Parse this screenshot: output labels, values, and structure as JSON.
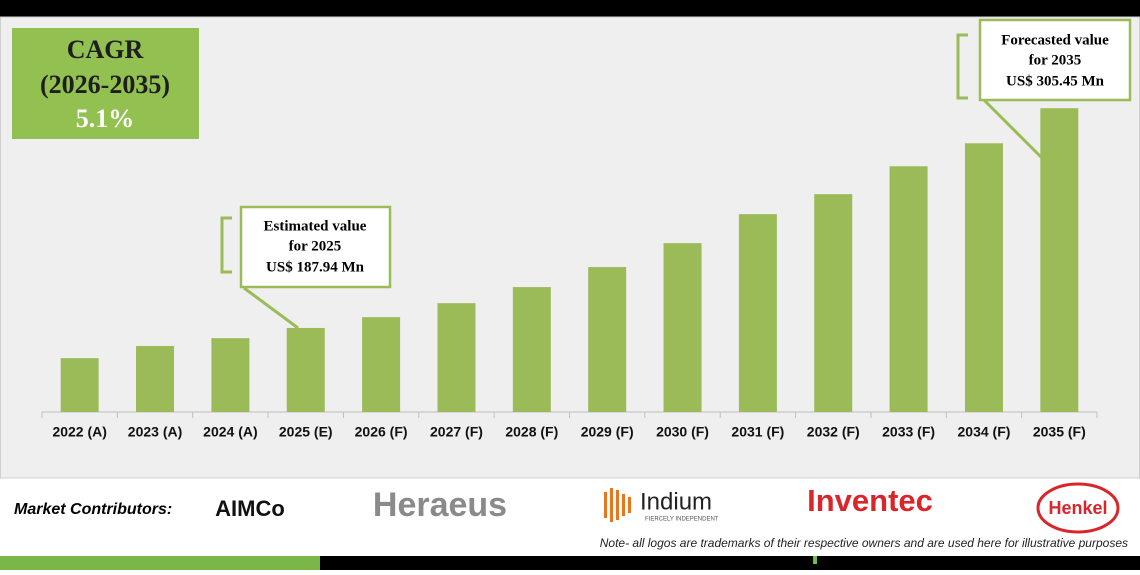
{
  "chart_data": {
    "type": "bar",
    "categories": [
      "2022 (A)",
      "2023 (A)",
      "2024 (A)",
      "2025 (E)",
      "2026 (F)",
      "2027 (F)",
      "2028 (F)",
      "2029 (F)",
      "2030 (F)",
      "2031 (F)",
      "2032 (F)",
      "2033 (F)",
      "2034 (F)",
      "2035 (F)"
    ],
    "values": [
      171.8,
      178.3,
      182.5,
      187.94,
      193.7,
      201.2,
      209.8,
      220.5,
      233.3,
      248.8,
      259.5,
      274.4,
      286.7,
      305.45
    ],
    "color": "#9bbb59",
    "ylim": [
      143,
      320
    ],
    "cagr": {
      "label": "CAGR",
      "period": "(2026-2035)",
      "value": "5.1%"
    },
    "annotations": [
      {
        "lines": [
          "Estimated value",
          "for 2025",
          "US$ 187.94 Mn"
        ]
      },
      {
        "lines": [
          "Forecasted value",
          "for 2035",
          "US$ 305.45 Mn"
        ]
      }
    ]
  },
  "footer": {
    "label": "Market Contributors:",
    "logos": [
      "AIMCo",
      "Heraeus",
      "Indium",
      "Inventec",
      "Henkel"
    ],
    "indium_tagline": "FIERCELY INDEPENDENT",
    "note": "Note- all logos are trademarks of their respective owners and are used here for illustrative purposes"
  }
}
